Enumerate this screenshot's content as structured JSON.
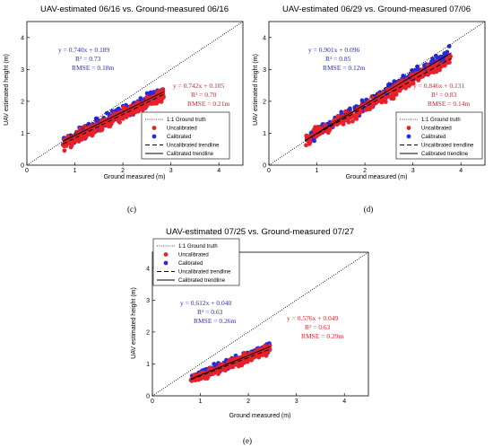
{
  "chart_data": [
    {
      "panel": "c",
      "type": "scatter",
      "title": "UAV-estimated 06/16 vs. Ground-measured 06/16",
      "xlabel": "Ground measured (m)",
      "ylabel": "UAV estimated height (m)",
      "xlim": [
        0,
        4.5
      ],
      "ylim": [
        0,
        4.5
      ],
      "xticks": [
        "0",
        "1",
        "2",
        "3",
        "4"
      ],
      "yticks": [
        "0",
        "1",
        "2",
        "3",
        "4"
      ],
      "legend_position": "bottom-right",
      "legend": [
        "1:1 Ground truth",
        "Uncalibrated",
        "Calibrated",
        "Uncalibrated trendline",
        "Calibrated trendline"
      ],
      "point_range": {
        "x": [
          0.75,
          2.85
        ],
        "spread": 0.28
      },
      "series": [
        {
          "name": "Uncalibrated",
          "color": "#e8202a",
          "slope": 0.742,
          "intercept": 0.105,
          "equation": "y = 0.742x + 0.105",
          "r2": "R² = 0.70",
          "rmse": "RMSE = 0.21m"
        },
        {
          "name": "Calibrated",
          "color": "#2a2ad8",
          "slope": 0.74,
          "intercept": 0.189,
          "equation": "y = 0.740x + 0.189",
          "r2": "R² = 0.73",
          "rmse": "RMSE = 0.18m"
        }
      ],
      "caption": "(c)"
    },
    {
      "panel": "d",
      "type": "scatter",
      "title": "UAV-estimated 06/29 vs. Ground-measured 07/06",
      "xlabel": "Ground measured (m)",
      "ylabel": "UAV estimated height (m)",
      "xlim": [
        0,
        4.5
      ],
      "ylim": [
        0,
        4.5
      ],
      "xticks": [
        "0",
        "1",
        "2",
        "3",
        "4"
      ],
      "yticks": [
        "0",
        "1",
        "2",
        "3",
        "4"
      ],
      "legend_position": "bottom-right",
      "legend": [
        "1:1 Ground truth",
        "Uncalibrated",
        "Calibrated",
        "Uncalibrated trendline",
        "Calibrated trendline"
      ],
      "point_range": {
        "x": [
          0.75,
          3.8
        ],
        "spread": 0.28
      },
      "series": [
        {
          "name": "Uncalibrated",
          "color": "#e8202a",
          "slope": 0.846,
          "intercept": 0.131,
          "equation": "y = 0.846x + 0.131",
          "r2": "R² = 0.83",
          "rmse": "RMSE = 0.14m"
        },
        {
          "name": "Calibrated",
          "color": "#2a2ad8",
          "slope": 0.901,
          "intercept": 0.096,
          "equation": "y = 0.901x + 0.096",
          "r2": "R² = 0.85",
          "rmse": "RMSE = 0.12m"
        }
      ],
      "caption": "(d)"
    },
    {
      "panel": "e",
      "type": "scatter",
      "title": "UAV-estimated 07/25 vs. Ground-measured 07/27",
      "xlabel": "Ground measured (m)",
      "ylabel": "UAV estimated height (m)",
      "xlim": [
        0,
        4.5
      ],
      "ylim": [
        0,
        4.5
      ],
      "xticks": [
        "0",
        "1",
        "2",
        "3",
        "4"
      ],
      "yticks": [
        "0",
        "1",
        "2",
        "3",
        "4"
      ],
      "legend_position": "top-left",
      "legend": [
        "1:1 Ground truth",
        "Uncalibrated",
        "Calibrated",
        "Uncalibrated trendline",
        "Calibrated trendline"
      ],
      "point_range": {
        "x": [
          0.8,
          2.45
        ],
        "spread": 0.2
      },
      "series": [
        {
          "name": "Uncalibrated",
          "color": "#e8202a",
          "slope": 0.576,
          "intercept": 0.049,
          "equation": "y = 0.576x + 0.049",
          "r2": "R² = 0.63",
          "rmse": "RMSE = 0.29m"
        },
        {
          "name": "Calibrated",
          "color": "#2a2ad8",
          "slope": 0.612,
          "intercept": 0.04,
          "equation": "y = 0.612x + 0.040",
          "r2": "R² = 0.63",
          "rmse": "RMSE = 0.26m"
        }
      ],
      "caption": "(e)"
    }
  ]
}
